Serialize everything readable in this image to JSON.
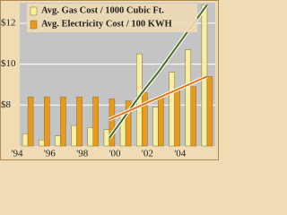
{
  "chart_data": {
    "type": "bar",
    "categories": [
      "'94",
      null,
      "'96",
      null,
      "'98",
      null,
      "'00",
      null,
      "'02",
      null,
      "'04",
      null
    ],
    "series": [
      {
        "name": "Avg. Gas Cost / 1000 Cubic Ft.",
        "color": "#f6f0a0",
        "values": [
          6.6,
          6.3,
          6.5,
          7.0,
          6.9,
          6.8,
          7.7,
          10.5,
          7.9,
          9.6,
          10.7,
          12.9
        ]
      },
      {
        "name": "Avg. Electricity Cost / 100 KWH",
        "color": "#e89a1c",
        "values": [
          8.4,
          8.4,
          8.4,
          8.4,
          8.4,
          8.3,
          8.2,
          8.6,
          8.4,
          8.7,
          8.9,
          9.4
        ]
      }
    ],
    "trendlines": [
      {
        "color": "#4a6a20",
        "values": [
          null,
          null,
          null,
          null,
          null,
          6.4,
          7.5,
          8.6,
          9.6,
          10.7,
          11.8,
          12.9
        ]
      },
      {
        "color": "#e07818",
        "values": [
          null,
          null,
          null,
          null,
          null,
          7.3,
          7.65,
          8.0,
          8.35,
          8.7,
          9.05,
          9.4
        ]
      }
    ],
    "ylim": [
      6,
      13
    ],
    "yticks": [
      {
        "value": 8,
        "label": "$8"
      },
      {
        "value": 10,
        "label": "$10"
      },
      {
        "value": 12,
        "label": "$12"
      }
    ],
    "grid": true
  }
}
